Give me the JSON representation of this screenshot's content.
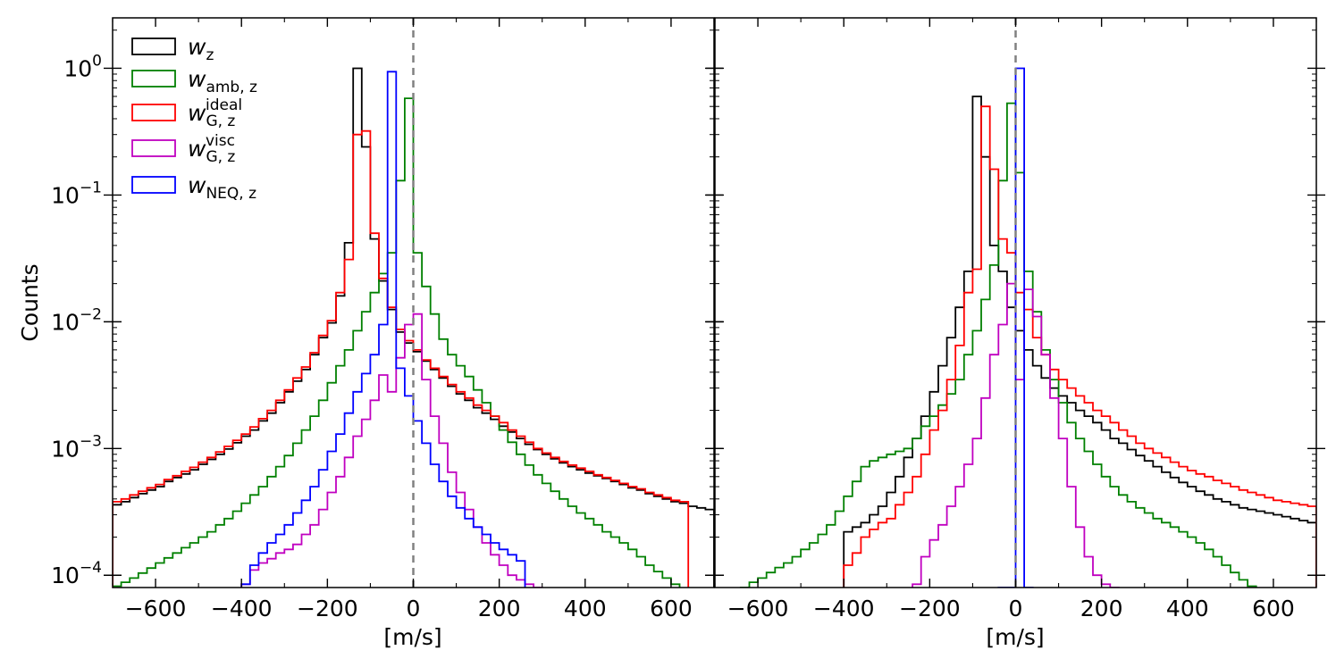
{
  "chart_data": [
    {
      "type": "step-histogram",
      "panel": "left",
      "xlabel": "[m/s]",
      "ylabel": "Counts",
      "xlim": [
        -700,
        700
      ],
      "ylim": [
        8e-05,
        2.5
      ],
      "yscale": "log",
      "xticks": [
        "−600",
        "−400",
        "−200",
        "0",
        "200",
        "400",
        "600"
      ],
      "yticks": [
        {
          "base": "10",
          "exp": "0"
        },
        {
          "base": "10",
          "exp": "−1"
        },
        {
          "base": "10",
          "exp": "−2"
        },
        {
          "base": "10",
          "exp": "−3"
        },
        {
          "base": "10",
          "exp": "−4"
        }
      ],
      "vline_x": 0,
      "bin_width": 20,
      "series": [
        {
          "name": "w_z",
          "color": "#000000",
          "x_start": -700,
          "values": [
            0.00036,
            0.00038,
            0.00041,
            0.00044,
            0.00047,
            0.0005,
            0.00055,
            0.00059,
            0.00063,
            0.00068,
            0.00075,
            0.00082,
            0.0009,
            0.00099,
            0.00111,
            0.00125,
            0.0014,
            0.00165,
            0.0019,
            0.0023,
            0.0028,
            0.0034,
            0.0042,
            0.0055,
            0.0075,
            0.0098,
            0.016,
            0.042,
            1.0,
            0.24,
            0.045,
            0.021,
            0.0125,
            0.0083,
            0.0068,
            0.0058,
            0.0049,
            0.0042,
            0.0036,
            0.0031,
            0.0027,
            0.0024,
            0.0021,
            0.0019,
            0.0017,
            0.0015,
            0.00135,
            0.0012,
            0.00108,
            0.00098,
            0.0009,
            0.00083,
            0.00077,
            0.00072,
            0.00068,
            0.00064,
            0.00061,
            0.00058,
            0.00055,
            0.00052,
            0.00049,
            0.00047,
            0.00044,
            0.00042,
            0.0004,
            0.00038,
            0.00037,
            0.00035,
            0.00034,
            0.00033
          ]
        },
        {
          "name": "w_amb,z",
          "color": "#008000",
          "x_start": -700,
          "values": [
            8.2e-05,
            8.8e-05,
            9.5e-05,
            0.000104,
            0.000114,
            0.000125,
            0.000137,
            0.00015,
            0.000165,
            0.00018,
            0.0002,
            0.00022,
            0.00025,
            0.00028,
            0.00032,
            0.00037,
            0.00043,
            0.0005,
            0.0006,
            0.00072,
            0.00088,
            0.0011,
            0.0014,
            0.0018,
            0.0024,
            0.0033,
            0.0045,
            0.006,
            0.0085,
            0.012,
            0.017,
            0.024,
            0.035,
            0.13,
            0.58,
            0.035,
            0.019,
            0.0115,
            0.0073,
            0.0055,
            0.0045,
            0.0037,
            0.0029,
            0.0023,
            0.0018,
            0.0014,
            0.00112,
            0.0009,
            0.00074,
            0.00062,
            0.00053,
            0.00046,
            0.0004,
            0.00035,
            0.00031,
            0.00028,
            0.00025,
            0.00022,
            0.0002,
            0.00018,
            0.00016,
            0.00014,
            0.00012,
            0.000107,
            9.5e-05,
            8.5e-05,
            7.8e-05
          ]
        },
        {
          "name": "w_G,z^ideal",
          "color": "#ff0000",
          "x_start": -700,
          "values": [
            0.00038,
            0.0004,
            0.00043,
            0.00046,
            0.00049,
            0.00052,
            0.00057,
            0.00061,
            0.00066,
            0.00071,
            0.00078,
            0.00085,
            0.00094,
            0.00104,
            0.00116,
            0.0013,
            0.00148,
            0.00172,
            0.002,
            0.0024,
            0.0029,
            0.0036,
            0.0044,
            0.0057,
            0.0078,
            0.0102,
            0.017,
            0.031,
            0.3,
            0.32,
            0.05,
            0.022,
            0.013,
            0.0087,
            0.0071,
            0.006,
            0.005,
            0.0043,
            0.0037,
            0.0032,
            0.0028,
            0.0025,
            0.0022,
            0.002,
            0.0018,
            0.0016,
            0.0014,
            0.00125,
            0.00112,
            0.001,
            0.00092,
            0.00085,
            0.00079,
            0.00074,
            0.0007,
            0.00066,
            0.00062,
            0.00059,
            0.00056,
            0.00053,
            0.0005,
            0.00048,
            0.00045,
            0.00043,
            0.00041,
            0.00039,
            0.00038
          ]
        },
        {
          "name": "w_G,z^visc",
          "color": "#c000c0",
          "x_start": -400,
          "values": [
            8.5e-05,
            0.00011,
            0.000125,
            0.000135,
            0.00015,
            0.00016,
            0.000175,
            0.00021,
            0.00025,
            0.00033,
            0.00045,
            0.0006,
            0.00085,
            0.00125,
            0.0017,
            0.0024,
            0.0038,
            0.0028,
            0.0052,
            0.0095,
            0.0115,
            0.0035,
            0.0018,
            0.0011,
            0.00065,
            0.00045,
            0.00033,
            0.00024,
            0.00018,
            0.000145,
            0.00012,
            0.0001,
            9.2e-05,
            8.5e-05,
            8e-05
          ]
        },
        {
          "name": "w_NEQ,z",
          "color": "#0000ff",
          "x_start": -400,
          "values": [
            8.5e-05,
            0.00012,
            0.00015,
            0.00018,
            0.00021,
            0.00025,
            0.00031,
            0.00039,
            0.0005,
            0.00068,
            0.00095,
            0.0013,
            0.0019,
            0.0028,
            0.0039,
            0.0055,
            0.0095,
            0.94,
            0.0043,
            0.0026,
            0.00165,
            0.0011,
            0.00075,
            0.00055,
            0.00042,
            0.00034,
            0.00028,
            0.00024,
            0.00021,
            0.00018,
            0.00016,
            0.000145,
            0.00013
          ]
        }
      ]
    },
    {
      "type": "step-histogram",
      "panel": "right",
      "xlabel": "[m/s]",
      "xlim": [
        -700,
        700
      ],
      "ylim": [
        8e-05,
        2.5
      ],
      "yscale": "log",
      "xticks": [
        "−600",
        "−400",
        "−200",
        "0",
        "200",
        "400",
        "600"
      ],
      "vline_x": 0,
      "bin_width": 20,
      "series": [
        {
          "name": "w_z",
          "color": "#000000",
          "x_start": -400,
          "values": [
            0.00022,
            0.00024,
            0.00026,
            0.0003,
            0.00035,
            0.00045,
            0.0006,
            0.00085,
            0.0012,
            0.0018,
            0.0028,
            0.0045,
            0.0075,
            0.013,
            0.025,
            0.6,
            0.2,
            0.04,
            0.025,
            0.013,
            0.0085,
            0.006,
            0.0045,
            0.0036,
            0.003,
            0.0026,
            0.0023,
            0.002,
            0.0018,
            0.0016,
            0.0014,
            0.0012,
            0.0011,
            0.00098,
            0.00088,
            0.0008,
            0.00072,
            0.00065,
            0.00059,
            0.00054,
            0.0005,
            0.00046,
            0.00043,
            0.0004,
            0.00038,
            0.00036,
            0.00034,
            0.00033,
            0.00032,
            0.00031,
            0.0003,
            0.00029,
            0.00028,
            0.00027,
            0.00026
          ]
        },
        {
          "name": "w_amb,z",
          "color": "#008000",
          "x_start": -700,
          "values": [
            6.5e-05,
            7e-05,
            7.5e-05,
            8e-05,
            8.8e-05,
            9.5e-05,
            0.000105,
            0.000115,
            0.000125,
            0.00014,
            0.00016,
            0.00018,
            0.00021,
            0.00025,
            0.00032,
            0.00042,
            0.00055,
            0.00072,
            0.0008,
            0.00085,
            0.0009,
            0.00095,
            0.001,
            0.0012,
            0.0015,
            0.0018,
            0.0022,
            0.0027,
            0.0035,
            0.0055,
            0.0085,
            0.015,
            0.028,
            0.13,
            0.53,
            0.15,
            0.025,
            0.012,
            0.006,
            0.0035,
            0.0023,
            0.0016,
            0.0012,
            0.00095,
            0.00075,
            0.0006,
            0.0005,
            0.00043,
            0.00038,
            0.00034,
            0.00031,
            0.00028,
            0.00026,
            0.00024,
            0.00022,
            0.0002,
            0.00018,
            0.00016,
            0.00014,
            0.00012,
            0.000105,
            9.2e-05,
            8.2e-05,
            7.5e-05
          ]
        },
        {
          "name": "w_G,z^ideal",
          "color": "#ff0000",
          "x_start": -400,
          "values": [
            0.00012,
            0.00015,
            0.0002,
            0.00023,
            0.00026,
            0.00028,
            0.00036,
            0.00045,
            0.0006,
            0.0009,
            0.0014,
            0.002,
            0.0035,
            0.0065,
            0.017,
            0.026,
            0.5,
            0.16,
            0.045,
            0.035,
            0.017,
            0.0125,
            0.0075,
            0.0055,
            0.0042,
            0.0035,
            0.003,
            0.0026,
            0.0023,
            0.002,
            0.0018,
            0.0016,
            0.0014,
            0.00125,
            0.0011,
            0.001,
            0.00092,
            0.00085,
            0.00078,
            0.00072,
            0.00067,
            0.00063,
            0.0006,
            0.00056,
            0.00053,
            0.0005,
            0.00047,
            0.00045,
            0.00043,
            0.00041,
            0.00039,
            0.00038,
            0.00037,
            0.00036,
            0.00035
          ]
        },
        {
          "name": "w_G,z^visc",
          "color": "#c000c0",
          "x_start": -240,
          "values": [
            8.5e-05,
            0.00014,
            0.00019,
            0.00025,
            0.00035,
            0.0005,
            0.00075,
            0.0012,
            0.0025,
            0.0055,
            0.0095,
            0.02,
            0.0035,
            0.018,
            0.011,
            0.0055,
            0.0025,
            0.0012,
            0.0005,
            0.00024,
            0.00014,
            0.0001,
            8.5e-05,
            8e-05
          ]
        },
        {
          "name": "w_NEQ,z",
          "color": "#0000ff",
          "x_start": -40,
          "values": [
            8e-05,
            8e-05,
            1.0,
            8e-05
          ]
        }
      ]
    }
  ],
  "legend": [
    {
      "base": "w",
      "sub": "z",
      "sup": "",
      "color": "#000000"
    },
    {
      "base": "w",
      "sub": "amb, z",
      "sup": "",
      "color": "#008000"
    },
    {
      "base": "w",
      "sub": "G, z",
      "sup": "ideal",
      "color": "#ff0000"
    },
    {
      "base": "w",
      "sub": "G, z",
      "sup": "visc",
      "color": "#c000c0"
    },
    {
      "base": "w",
      "sub": "NEQ, z",
      "sup": "",
      "color": "#0000ff"
    }
  ]
}
